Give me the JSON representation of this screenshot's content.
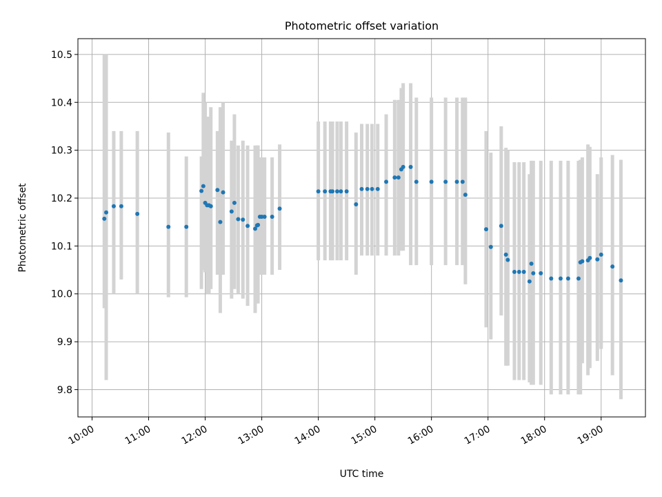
{
  "chart_data": {
    "type": "scatter",
    "title": "Photometric offset variation",
    "xlabel": "UTC time",
    "ylabel": "Photometric offset",
    "xlim": [
      "09:45",
      "19:47"
    ],
    "ylim": [
      9.743,
      10.533
    ],
    "grid": true,
    "x_ticks": [
      "10:00",
      "11:00",
      "12:00",
      "13:00",
      "14:00",
      "15:00",
      "16:00",
      "17:00",
      "18:00",
      "19:00"
    ],
    "y_ticks": [
      "9.8",
      "9.9",
      "10.0",
      "10.1",
      "10.2",
      "10.3",
      "10.4",
      "10.5"
    ],
    "colors": {
      "point": "#1f77b4",
      "errorbar": "#d3d3d3",
      "grid": "#b0b0b0"
    },
    "series": [
      {
        "x": [
          "10:13",
          "10:15",
          "10:23",
          "10:31",
          "10:48",
          "11:21",
          "11:40",
          "11:56",
          "11:58",
          "12:00",
          "12:02",
          "12:04",
          "12:06",
          "12:13",
          "12:16",
          "12:19",
          "12:28",
          "12:31",
          "12:35",
          "12:40",
          "12:45",
          "12:53",
          "12:55",
          "12:56",
          "12:58",
          "13:00",
          "13:03",
          "13:11",
          "13:19",
          "14:00",
          "14:07",
          "14:13",
          "14:15",
          "14:20",
          "14:24",
          "14:30",
          "14:40",
          "14:46",
          "14:52",
          "14:57",
          "15:03",
          "15:12",
          "15:21",
          "15:25",
          "15:28",
          "15:30",
          "15:38",
          "15:44",
          "16:00",
          "16:15",
          "16:27",
          "16:33",
          "16:36",
          "16:58",
          "17:03",
          "17:14",
          "17:19",
          "17:21",
          "17:28",
          "17:33",
          "17:38",
          "17:44",
          "17:46",
          "17:48",
          "17:56",
          "18:07",
          "18:17",
          "18:25",
          "18:36",
          "18:38",
          "18:40",
          "18:46",
          "18:48",
          "18:56",
          "19:00",
          "19:12",
          "19:21"
        ],
        "y": [
          10.157,
          10.17,
          10.183,
          10.183,
          10.167,
          10.14,
          10.14,
          10.215,
          10.225,
          10.19,
          10.185,
          10.185,
          10.183,
          10.217,
          10.15,
          10.212,
          10.172,
          10.19,
          10.156,
          10.155,
          10.142,
          10.136,
          10.143,
          10.144,
          10.161,
          10.161,
          10.161,
          10.161,
          10.178,
          10.214,
          10.214,
          10.214,
          10.214,
          10.214,
          10.214,
          10.214,
          10.187,
          10.219,
          10.219,
          10.219,
          10.219,
          10.234,
          10.243,
          10.243,
          10.26,
          10.265,
          10.265,
          10.234,
          10.234,
          10.234,
          10.234,
          10.234,
          10.207,
          10.135,
          10.098,
          10.142,
          10.082,
          10.071,
          10.046,
          10.046,
          10.046,
          10.026,
          10.063,
          10.043,
          10.043,
          10.032,
          10.032,
          10.032,
          10.032,
          10.066,
          10.068,
          10.07,
          10.075,
          10.072,
          10.082,
          10.057,
          10.028
        ],
        "yerr_low": [
          9.97,
          9.82,
          10.0,
          10.03,
          10.0,
          9.993,
          9.993,
          10.01,
          10.05,
          10.045,
          10.0,
          10.0,
          10.01,
          10.04,
          9.96,
          10.04,
          9.99,
          10.01,
          10.0,
          9.99,
          9.975,
          9.96,
          9.98,
          9.98,
          10.04,
          10.04,
          10.04,
          10.04,
          10.05,
          10.07,
          10.07,
          10.07,
          10.07,
          10.07,
          10.07,
          10.07,
          10.04,
          10.08,
          10.08,
          10.08,
          10.08,
          10.08,
          10.08,
          10.08,
          10.09,
          10.09,
          10.06,
          10.06,
          10.06,
          10.06,
          10.06,
          10.06,
          10.02,
          9.93,
          9.905,
          9.955,
          9.85,
          9.85,
          9.82,
          9.82,
          9.82,
          9.815,
          9.81,
          9.81,
          9.81,
          9.79,
          9.79,
          9.79,
          9.79,
          9.79,
          9.855,
          9.83,
          9.845,
          9.86,
          9.885,
          9.83,
          9.78
        ],
        "yerr_high": [
          10.5,
          10.5,
          10.34,
          10.34,
          10.34,
          10.337,
          10.287,
          10.287,
          10.42,
          10.4,
          10.37,
          10.37,
          10.39,
          10.34,
          10.39,
          10.4,
          10.32,
          10.375,
          10.31,
          10.32,
          10.31,
          10.31,
          10.31,
          10.31,
          10.285,
          10.285,
          10.285,
          10.285,
          10.312,
          10.36,
          10.36,
          10.36,
          10.36,
          10.36,
          10.36,
          10.36,
          10.337,
          10.355,
          10.355,
          10.355,
          10.355,
          10.375,
          10.405,
          10.405,
          10.43,
          10.44,
          10.44,
          10.41,
          10.41,
          10.41,
          10.41,
          10.41,
          10.41,
          10.34,
          10.295,
          10.35,
          10.305,
          10.3,
          10.275,
          10.275,
          10.275,
          10.25,
          10.278,
          10.278,
          10.278,
          10.278,
          10.278,
          10.278,
          10.278,
          10.28,
          10.285,
          10.312,
          10.307,
          10.25,
          10.285,
          10.29,
          10.28
        ]
      }
    ]
  }
}
